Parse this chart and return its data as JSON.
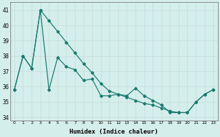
{
  "xlabel": "Humidex (Indice chaleur)",
  "x": [
    0,
    1,
    2,
    3,
    4,
    5,
    6,
    7,
    8,
    9,
    10,
    11,
    12,
    13,
    14,
    15,
    16,
    17,
    18,
    19,
    20,
    21,
    22,
    23
  ],
  "line1_y": [
    35.8,
    38.0,
    37.2,
    41.0,
    35.8,
    37.9,
    37.3,
    37.1,
    36.4,
    36.5,
    35.4,
    35.4,
    35.5,
    35.4,
    35.9,
    35.4,
    35.1,
    34.8,
    34.3,
    34.3,
    34.3,
    35.0,
    35.5,
    35.8
  ],
  "line2_y": [
    35.8,
    38.0,
    37.2,
    41.0,
    40.3,
    39.6,
    38.9,
    38.2,
    37.5,
    36.9,
    36.2,
    35.7,
    35.5,
    35.3,
    35.1,
    34.9,
    34.8,
    34.6,
    34.4,
    34.3,
    34.3,
    35.0,
    35.5,
    35.8
  ],
  "line_color": "#1a7a6e",
  "bg_color": "#d4eeeb",
  "grid_color": "#c8dedd",
  "ylim": [
    33.8,
    41.5
  ],
  "yticks": [
    34,
    35,
    36,
    37,
    38,
    39,
    40,
    41
  ],
  "marker": "D",
  "marker_size": 2.0,
  "line_width": 0.9
}
